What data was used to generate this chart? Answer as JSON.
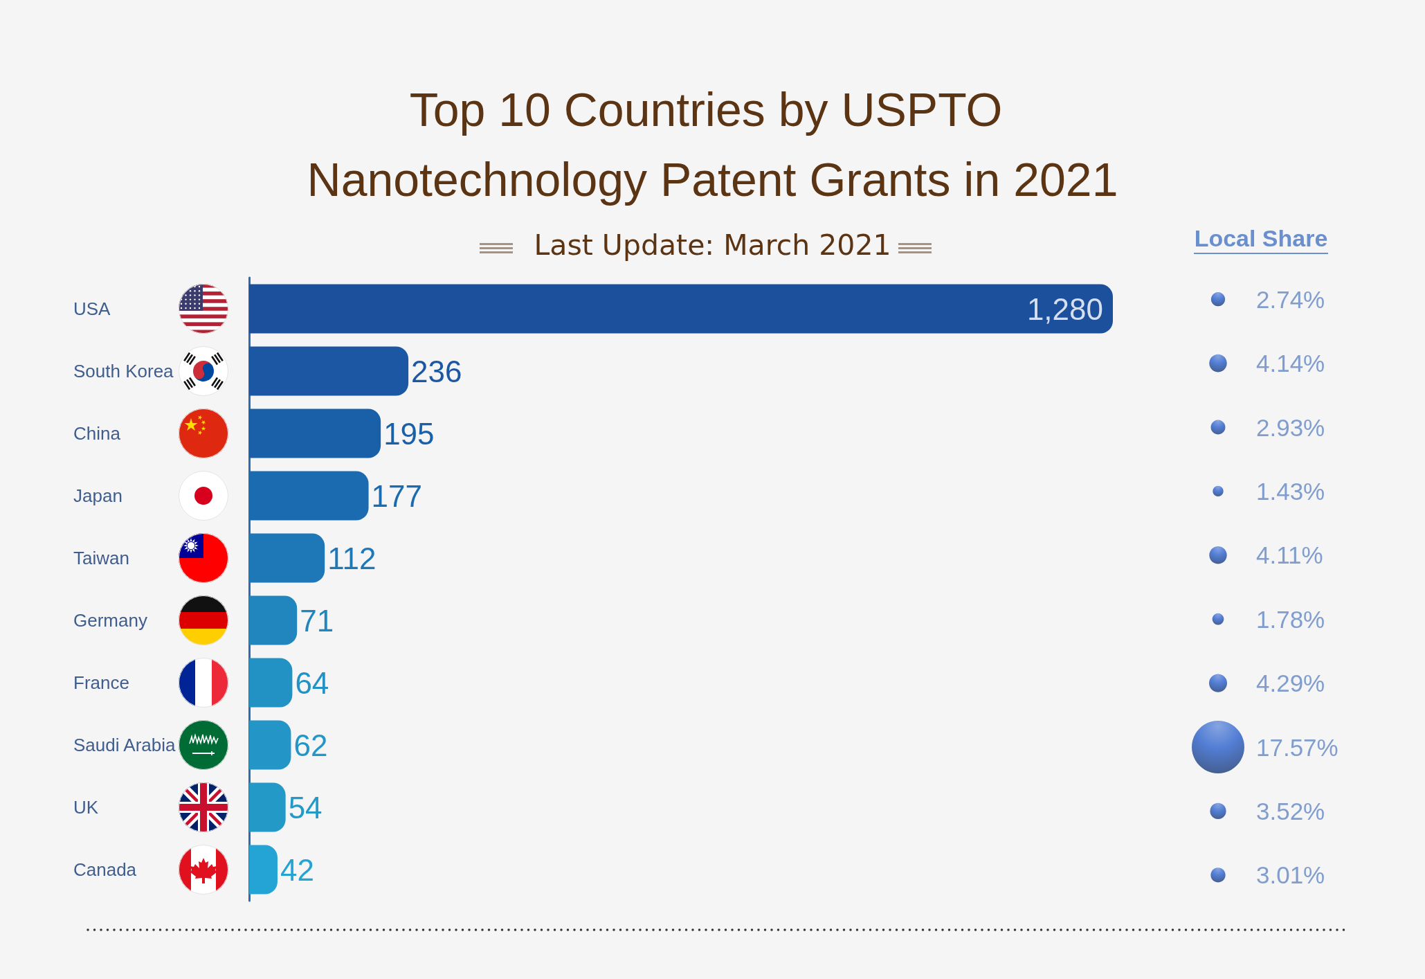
{
  "chart_data": [
    {
      "type": "bar",
      "title": "Top 10 Countries by USPTO Nanotechnology Patent Grants in 2021",
      "subtitle": "Last Update: March 2021",
      "orientation": "horizontal",
      "tick_labels": "y",
      "categories": [
        "USA",
        "South Korea",
        "China",
        "Japan",
        "Taiwan",
        "Germany",
        "France",
        "Saudi Arabia",
        "UK",
        "Canada"
      ],
      "values": [
        1280,
        236,
        195,
        177,
        112,
        71,
        64,
        62,
        54,
        42
      ],
      "colors": [
        "#1c4f9c",
        "#1b57a3",
        "#1a60a9",
        "#1b6bb0",
        "#1e78b7",
        "#2186bd",
        "#2291c3",
        "#2396c7",
        "#2399c8",
        "#24a4d4"
      ],
      "value_labels": [
        "1,280",
        "236",
        "195",
        "177",
        "112",
        "71",
        "64",
        "62",
        "54",
        "42"
      ]
    },
    {
      "type": "other",
      "title": "Local Share",
      "values": [
        2.74,
        4.14,
        2.93,
        1.43,
        4.11,
        1.78,
        4.29,
        17.57,
        3.52,
        3.01
      ],
      "value_labels": [
        "2.74%",
        "4.14%",
        "2.93%",
        "1.43%",
        "4.11%",
        "1.78%",
        "4.29%",
        "17.57%",
        "3.52%",
        "3.01%"
      ],
      "color": "#2a60cc"
    }
  ]
}
